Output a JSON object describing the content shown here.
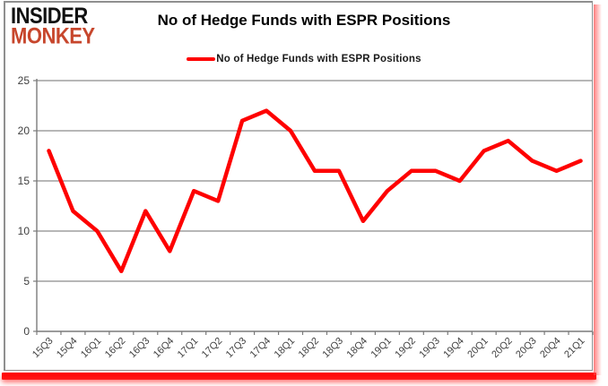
{
  "logo": {
    "line1": "INSIDER",
    "line2": "MONKEY"
  },
  "header": {
    "title": "No of Hedge Funds with ESPR Positions"
  },
  "legend": {
    "label": "No of Hedge Funds with ESPR Positions"
  },
  "colors": {
    "line": "#fe0000",
    "logo_black": "#111111",
    "logo_red": "#c7462c",
    "grid": "#8c8c8c",
    "axis": "#7a7a7a",
    "tick_text": "#3f3f3f",
    "frame_border": "#8f8f8f",
    "glow": "#ff0000"
  },
  "chart_data": {
    "type": "line",
    "title": "No of Hedge Funds with ESPR Positions",
    "categories": [
      "15Q3",
      "15Q4",
      "16Q1",
      "16Q2",
      "16Q3",
      "16Q4",
      "17Q1",
      "17Q2",
      "17Q3",
      "17Q4",
      "18Q1",
      "18Q2",
      "18Q3",
      "18Q4",
      "19Q1",
      "19Q2",
      "19Q3",
      "19Q4",
      "20Q1",
      "20Q2",
      "20Q3",
      "20Q4",
      "21Q1"
    ],
    "series": [
      {
        "name": "No of Hedge Funds with ESPR Positions",
        "color": "#fe0000",
        "values": [
          18,
          12,
          10,
          6,
          12,
          8,
          14,
          13,
          21,
          22,
          20,
          16,
          16,
          11,
          14,
          16,
          16,
          15,
          18,
          19,
          17,
          16,
          17
        ]
      }
    ],
    "xlabel": "",
    "ylabel": "",
    "ylim": [
      0,
      25
    ],
    "ytick_interval": 5,
    "grid": true,
    "legend_position": "top-center"
  }
}
